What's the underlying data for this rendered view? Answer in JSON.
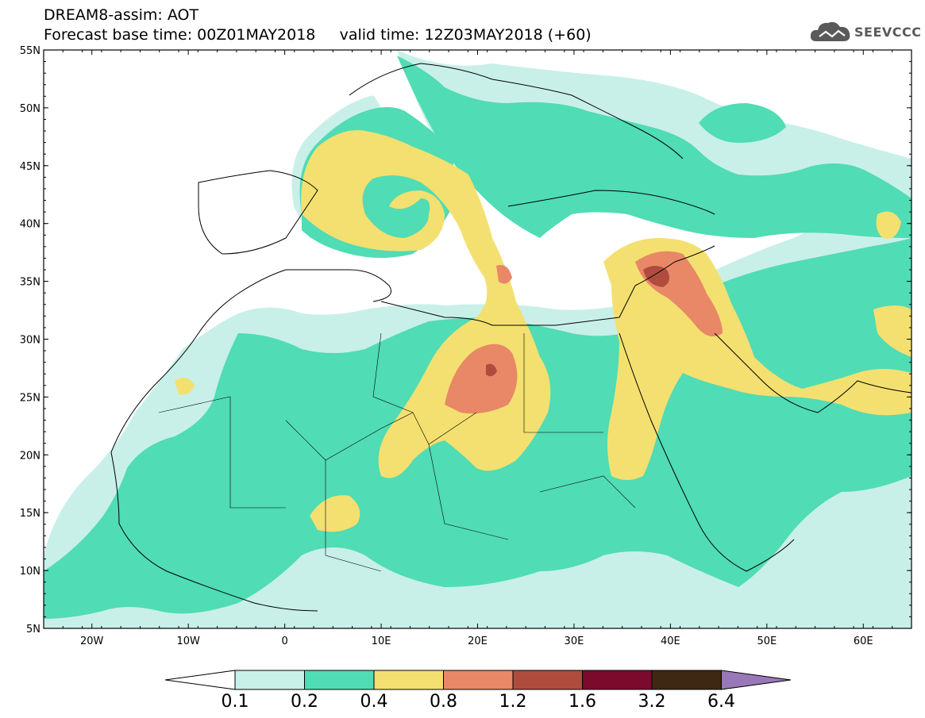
{
  "title": {
    "line1": "DREAM8-assim: AOT",
    "line2": "Forecast base time: 00Z01MAY2018     valid time: 12Z03MAY2018 (+60)"
  },
  "logo": {
    "text": "SEEVCCC",
    "icon": "cloud-icon"
  },
  "map": {
    "lon_range": [
      -25,
      65
    ],
    "lat_range": [
      5,
      55
    ],
    "lat_ticks": [
      "55N",
      "50N",
      "45N",
      "40N",
      "35N",
      "30N",
      "25N",
      "20N",
      "15N",
      "10N",
      "5N"
    ],
    "lon_ticks": [
      "20W",
      "10W",
      "0",
      "10E",
      "20E",
      "30E",
      "40E",
      "50E",
      "60E"
    ]
  },
  "colorbar": {
    "labels": [
      "0.1",
      "0.2",
      "0.4",
      "0.8",
      "1.2",
      "1.6",
      "3.2",
      "6.4"
    ],
    "colors": {
      "under": "#ffffff",
      "c1": "#c8f0e8",
      "c2": "#50dcb4",
      "c3": "#f4e070",
      "c4": "#e88866",
      "c5": "#b04c3e",
      "c6": "#7c0a2c",
      "c7": "#3e2814",
      "over": "#9a78b8"
    }
  }
}
